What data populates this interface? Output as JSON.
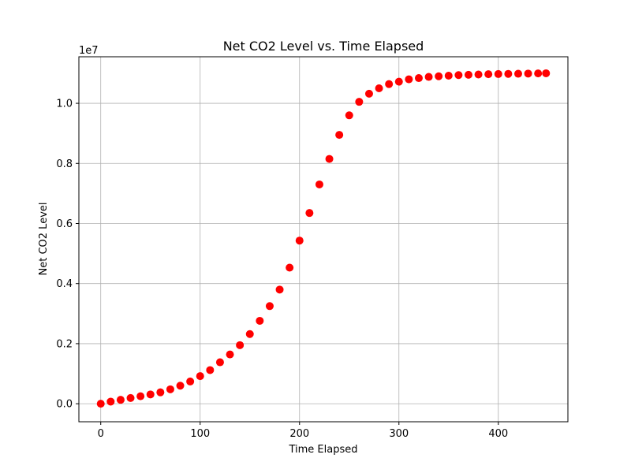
{
  "chart_data": {
    "type": "scatter",
    "title": "Net CO2 Level vs. Time Elapsed",
    "xlabel": "Time Elapsed",
    "ylabel": "Net CO2 Level",
    "y_offset_label": "1e7",
    "xlim": [
      -22,
      470
    ],
    "ylim": [
      -600000,
      11550000
    ],
    "x_ticks": [
      0,
      100,
      200,
      300,
      400
    ],
    "x_tick_labels": [
      "0",
      "100",
      "200",
      "300",
      "400"
    ],
    "y_ticks": [
      0,
      2000000,
      4000000,
      6000000,
      8000000,
      10000000
    ],
    "y_tick_labels": [
      "0.0",
      "0.2",
      "0.4",
      "0.6",
      "0.8",
      "1.0"
    ],
    "grid": true,
    "marker_color": "#ff0000",
    "series": [
      {
        "x": [
          0,
          10,
          20,
          30,
          40,
          50,
          60,
          70,
          80,
          90,
          100,
          110,
          120,
          130,
          140,
          150,
          160,
          170,
          180,
          190,
          200,
          210,
          220,
          230,
          240,
          250,
          260,
          270,
          280,
          290,
          300,
          310,
          320,
          330,
          340,
          350,
          360,
          370,
          380,
          390,
          400,
          410,
          420,
          430,
          440,
          448
        ],
        "y": [
          0,
          70000,
          130000,
          190000,
          250000,
          310000,
          380000,
          480000,
          600000,
          740000,
          920000,
          1120000,
          1380000,
          1640000,
          1950000,
          2320000,
          2760000,
          3250000,
          3800000,
          4530000,
          5430000,
          6350000,
          7300000,
          8150000,
          8950000,
          9600000,
          10050000,
          10320000,
          10500000,
          10640000,
          10720000,
          10800000,
          10840000,
          10880000,
          10900000,
          10920000,
          10940000,
          10950000,
          10960000,
          10970000,
          10975000,
          10980000,
          10985000,
          10990000,
          10995000,
          11000000
        ]
      }
    ]
  }
}
